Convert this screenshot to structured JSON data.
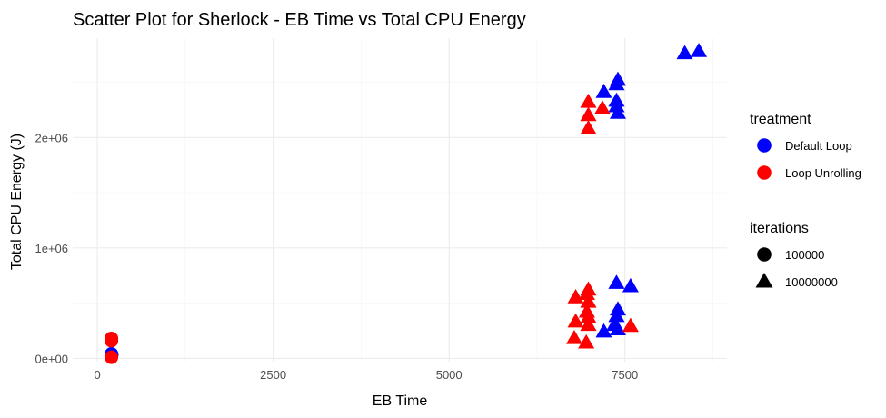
{
  "chart_data": {
    "type": "scatter",
    "title": "Scatter Plot for Sherlock  - EB Time vs Total CPU Energy",
    "xlabel": "EB Time",
    "ylabel": "Total CPU Energy (J)",
    "xlim": [
      -350,
      8950
    ],
    "ylim": [
      -30000,
      2900000
    ],
    "x_ticks": [
      0,
      2500,
      5000,
      7500
    ],
    "x_tick_labels": [
      "0",
      "2500",
      "5000",
      "7500"
    ],
    "y_ticks": [
      0,
      1000000,
      2000000
    ],
    "y_tick_labels": [
      "0e+00",
      "1e+06",
      "2e+06"
    ],
    "grid": true,
    "legend_position": "right",
    "legends": [
      {
        "title": "treatment",
        "entries": [
          {
            "label": "Default Loop",
            "color": "#0000ff",
            "shape": "circle"
          },
          {
            "label": "Loop Unrolling",
            "color": "#ff0000",
            "shape": "circle"
          }
        ]
      },
      {
        "title": "iterations",
        "entries": [
          {
            "label": "100000",
            "color": "#000000",
            "shape": "circle"
          },
          {
            "label": "10000000",
            "color": "#000000",
            "shape": "triangle"
          }
        ]
      }
    ],
    "series": [
      {
        "treatment": "Default Loop",
        "iterations": "100000",
        "color": "#0000ff",
        "shape": "circle",
        "points": [
          [
            200,
            40000
          ],
          [
            200,
            20000
          ],
          [
            205,
            30000
          ]
        ]
      },
      {
        "treatment": "Loop Unrolling",
        "iterations": "100000",
        "color": "#ff0000",
        "shape": "circle",
        "points": [
          [
            200,
            180000
          ],
          [
            200,
            160000
          ],
          [
            200,
            10000
          ]
        ]
      },
      {
        "treatment": "Default Loop",
        "iterations": "10000000",
        "color": "#0000ff",
        "shape": "triangle",
        "points": [
          [
            8350,
            2760000
          ],
          [
            8550,
            2780000
          ],
          [
            7400,
            2520000
          ],
          [
            7380,
            2480000
          ],
          [
            7200,
            2410000
          ],
          [
            7380,
            2330000
          ],
          [
            7380,
            2280000
          ],
          [
            7400,
            2220000
          ],
          [
            7380,
            680000
          ],
          [
            7580,
            650000
          ],
          [
            7400,
            440000
          ],
          [
            7380,
            380000
          ],
          [
            7350,
            300000
          ],
          [
            7400,
            260000
          ],
          [
            7200,
            240000
          ]
        ]
      },
      {
        "treatment": "Loop Unrolling",
        "iterations": "10000000",
        "color": "#ff0000",
        "shape": "triangle",
        "points": [
          [
            6980,
            2320000
          ],
          [
            7180,
            2260000
          ],
          [
            6980,
            2200000
          ],
          [
            6980,
            2080000
          ],
          [
            6800,
            550000
          ],
          [
            6980,
            620000
          ],
          [
            6960,
            580000
          ],
          [
            6980,
            510000
          ],
          [
            6960,
            420000
          ],
          [
            6980,
            370000
          ],
          [
            6800,
            330000
          ],
          [
            6980,
            300000
          ],
          [
            7580,
            290000
          ],
          [
            6780,
            180000
          ],
          [
            6950,
            140000
          ]
        ]
      }
    ]
  }
}
